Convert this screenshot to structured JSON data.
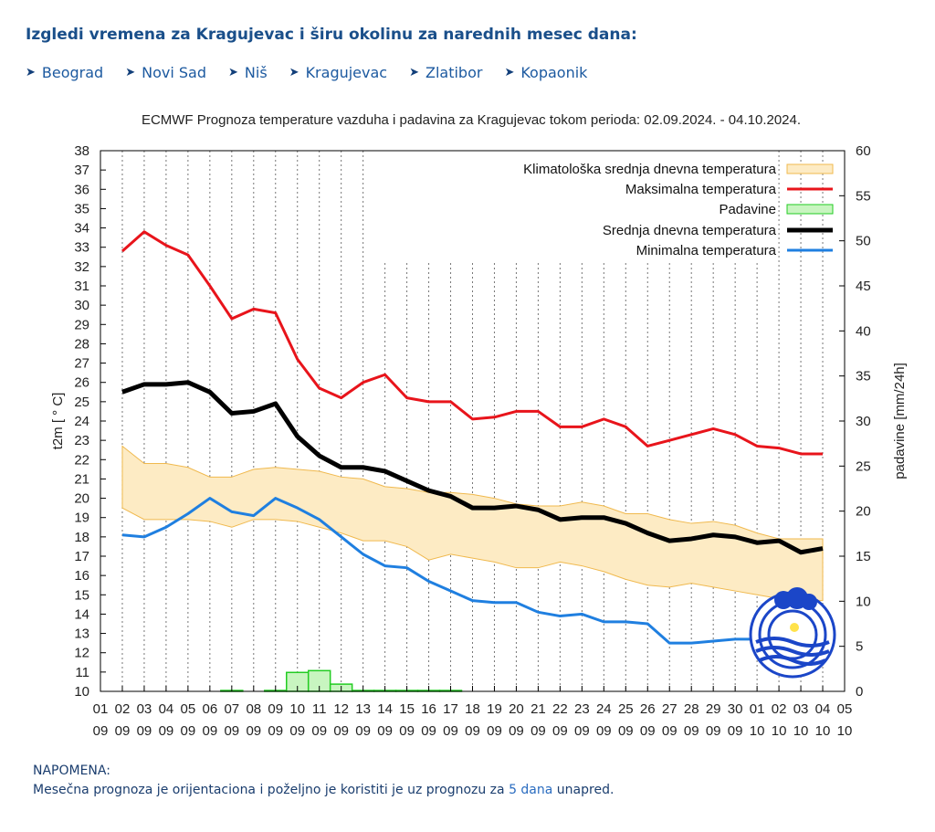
{
  "header": {
    "title": "Izgledi vremena za Kragujevac i širu okolinu za narednih mesec dana:"
  },
  "nav": [
    {
      "label": "Beograd"
    },
    {
      "label": "Novi Sad"
    },
    {
      "label": "Niš"
    },
    {
      "label": "Kragujevac"
    },
    {
      "label": "Zlatibor"
    },
    {
      "label": "Kopaonik"
    }
  ],
  "note": {
    "heading": "NAPOMENA:",
    "text_before": "Mesečna prognoza je orijentaciona i poželjno je koristiti je uz prognozu za ",
    "link": "5 dana",
    "text_after": " unapred."
  },
  "chart_data": {
    "type": "line",
    "title": "ECMWF Prognoza temperature vazduha i padavina za Kragujevac tokom perioda: 02.09.2024. - 04.10.2024.",
    "ylabel": "t2m [ ° C]",
    "y2label": "padavine [mm/24h]",
    "ylim": [
      10,
      38
    ],
    "y2lim": [
      0,
      60
    ],
    "xticks": [
      "01 09",
      "02 09",
      "03 09",
      "04 09",
      "05 09",
      "06 09",
      "07 09",
      "08 09",
      "09 09",
      "10 09",
      "11 09",
      "12 09",
      "13 09",
      "14 09",
      "15 09",
      "16 09",
      "17 09",
      "18 09",
      "19 09",
      "20 09",
      "21 09",
      "22 09",
      "23 09",
      "24 09",
      "25 09",
      "26 09",
      "27 09",
      "28 09",
      "29 09",
      "30 09",
      "01 10",
      "02 10",
      "03 10",
      "04 10",
      "05 10"
    ],
    "legend_position": "top-right",
    "colors": {
      "max": "#e8141b",
      "mean": "#000000",
      "min": "#1f7fe0",
      "clim_fill": "#fdebc4",
      "clim_line": "#f0b94e",
      "precip_fill": "#c8f5c0",
      "precip_line": "#22cc22"
    },
    "series": [
      {
        "name": "Klimatološka srednja dnevna temperatura",
        "kind": "band",
        "upper": [
          22.7,
          21.8,
          21.8,
          21.6,
          21.1,
          21.1,
          21.5,
          21.6,
          21.5,
          21.4,
          21.1,
          21.0,
          20.6,
          20.5,
          20.3,
          20.3,
          20.2,
          20.0,
          19.7,
          19.6,
          19.6,
          19.8,
          19.6,
          19.2,
          19.2,
          18.9,
          18.7,
          18.8,
          18.6,
          18.2,
          17.9,
          17.9,
          17.9
        ],
        "lower": [
          19.5,
          18.9,
          18.9,
          18.9,
          18.8,
          18.5,
          18.9,
          18.9,
          18.8,
          18.5,
          18.2,
          17.8,
          17.8,
          17.5,
          16.8,
          17.1,
          16.9,
          16.7,
          16.4,
          16.4,
          16.7,
          16.5,
          16.2,
          15.8,
          15.5,
          15.4,
          15.6,
          15.4,
          15.2,
          15.0,
          14.8,
          14.7,
          14.7
        ]
      },
      {
        "name": "Maksimalna temperatura",
        "kind": "max",
        "values": [
          32.8,
          33.8,
          33.1,
          32.6,
          31.0,
          29.3,
          29.8,
          29.6,
          27.2,
          25.7,
          25.2,
          26.0,
          26.4,
          25.2,
          25.0,
          25.0,
          24.1,
          24.2,
          24.5,
          24.5,
          23.7,
          23.7,
          24.1,
          23.7,
          22.7,
          23.0,
          23.3,
          23.6,
          23.3,
          22.7,
          22.6,
          22.3,
          22.3
        ]
      },
      {
        "name": "Padavine",
        "kind": "precip",
        "values": [
          0,
          0,
          0,
          0,
          0,
          0.1,
          0,
          0.1,
          2.1,
          2.3,
          0.8,
          0.1,
          0.1,
          0.1,
          0.1,
          0.1,
          0,
          0,
          0,
          0,
          0,
          0,
          0,
          0,
          0,
          0,
          0,
          0,
          0,
          0,
          0,
          0,
          0
        ]
      },
      {
        "name": "Srednja dnevna temperatura",
        "kind": "mean",
        "values": [
          25.5,
          25.9,
          25.9,
          26.0,
          25.5,
          24.4,
          24.5,
          24.9,
          23.2,
          22.2,
          21.6,
          21.6,
          21.4,
          20.9,
          20.4,
          20.1,
          19.5,
          19.5,
          19.6,
          19.4,
          18.9,
          19.0,
          19.0,
          18.7,
          18.2,
          17.8,
          17.9,
          18.1,
          18.0,
          17.7,
          17.8,
          17.2,
          17.4
        ]
      },
      {
        "name": "Minimalna temperatura",
        "kind": "min",
        "values": [
          18.1,
          18.0,
          18.5,
          19.2,
          20.0,
          19.3,
          19.1,
          20.0,
          19.5,
          18.9,
          18.0,
          17.1,
          16.5,
          16.4,
          15.7,
          15.2,
          14.7,
          14.6,
          14.6,
          14.1,
          13.9,
          14.0,
          13.6,
          13.6,
          13.5,
          12.5,
          12.5,
          12.6,
          12.7,
          12.7,
          12.9,
          12.6,
          12.6
        ]
      }
    ]
  }
}
